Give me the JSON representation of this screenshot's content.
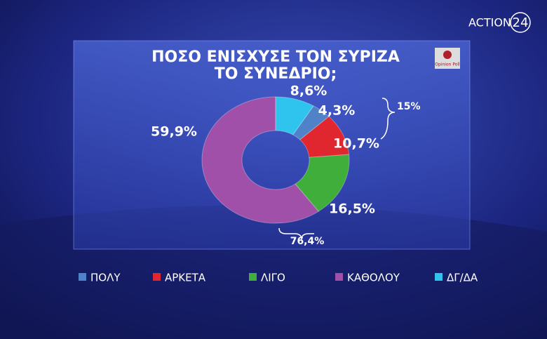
{
  "branding": {
    "channel": "ACTION",
    "channel_number": "24",
    "pollster": "Opinion Poll"
  },
  "chart_data": {
    "type": "donut",
    "title": [
      "ΠΟΣΟ ΕΝΙΣΧΥΣΕ ΤΟΝ ΣΥΡΙΖΑ",
      "ΤΟ ΣΥΝΕΔΡΙΟ;"
    ],
    "categories": [
      "ΠΟΛΥ",
      "ΑΡΚΕΤΑ",
      "ΛΙΓΟ",
      "ΚΑΘΟΛΟΥ",
      "ΔΓ/ΔΑ"
    ],
    "values": [
      4.3,
      10.7,
      16.5,
      59.9,
      8.6
    ],
    "value_labels": [
      "4,3%",
      "10,7%",
      "16,5%",
      "59,9%",
      "8,6%"
    ],
    "colors": [
      "#4f82c9",
      "#e0262e",
      "#3fae3a",
      "#a050a8",
      "#2ec4ee"
    ],
    "annotations": [
      {
        "value": 15,
        "label": "15%"
      },
      {
        "value": 76.4,
        "label": "76,4%"
      }
    ],
    "legend": "bottom"
  }
}
